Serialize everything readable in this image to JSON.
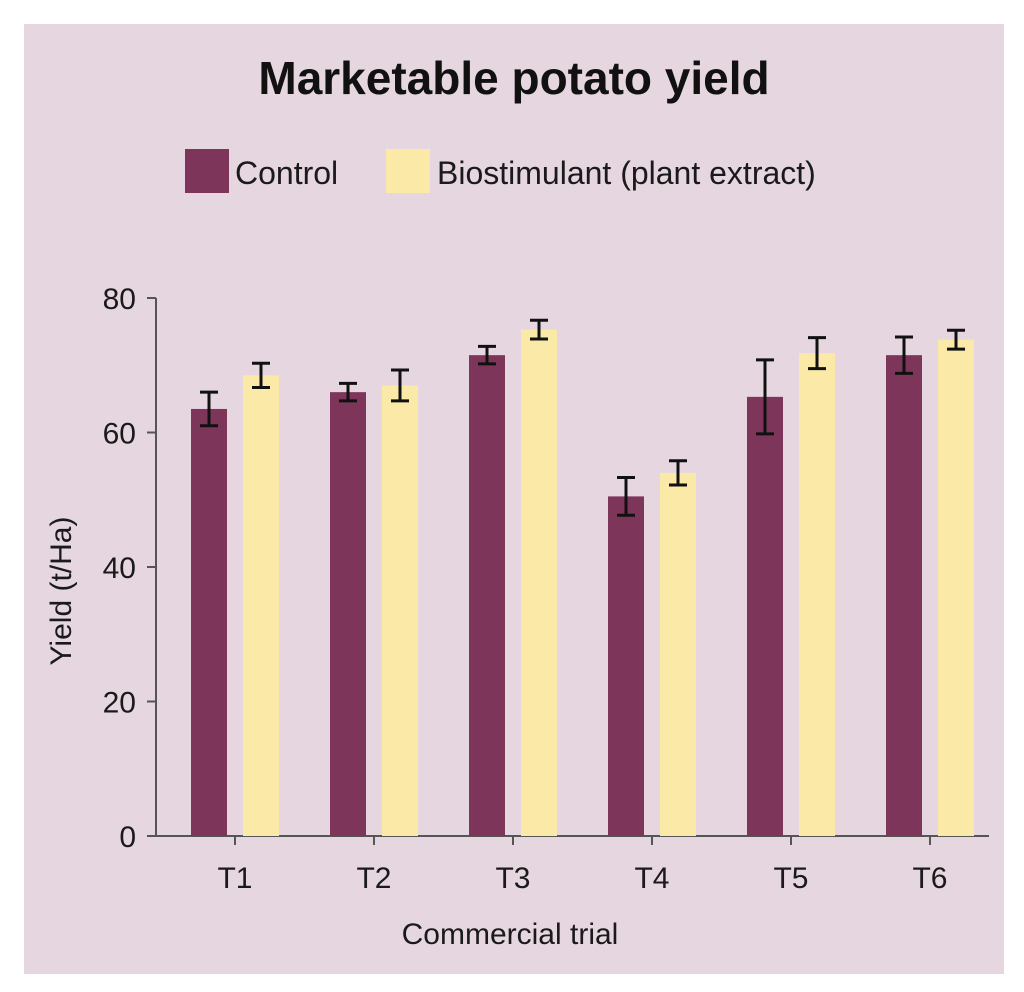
{
  "chart_data": {
    "type": "bar",
    "title": "Marketable potato yield",
    "xlabel": "Commercial trial",
    "ylabel": "Yield (t/Ha)",
    "ylim": [
      0,
      80
    ],
    "yticks": [
      0,
      20,
      40,
      60,
      80
    ],
    "categories": [
      "T1",
      "T2",
      "T3",
      "T4",
      "T5",
      "T6"
    ],
    "series": [
      {
        "name": "Control",
        "color": "#7d3659",
        "values": [
          63.5,
          66,
          71.5,
          50.5,
          65.3,
          71.5
        ],
        "errors": [
          2.5,
          1.3,
          1.3,
          2.8,
          5.5,
          2.7
        ]
      },
      {
        "name": "Biostimulant (plant extract)",
        "color": "#fbe9a7",
        "values": [
          68.5,
          67,
          75.3,
          54,
          71.8,
          73.8
        ],
        "errors": [
          1.8,
          2.3,
          1.4,
          1.8,
          2.3,
          1.4
        ]
      }
    ],
    "legend_position": "top",
    "grid": false
  },
  "colors": {
    "background": "#e5d6e0",
    "axis": "#555555",
    "errorbar": "#111111"
  }
}
